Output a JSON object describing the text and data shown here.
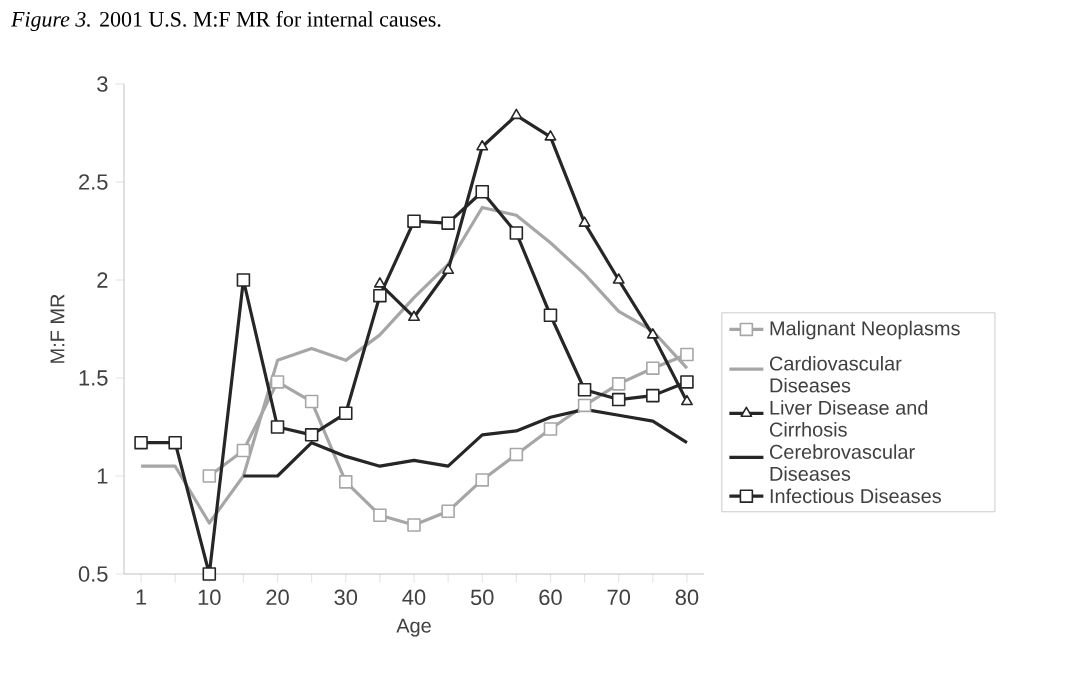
{
  "chart_data": {
    "type": "line",
    "title": "*Figure 3.*    2001 U.S. M:F MR for internal causes.",
    "xlabel": "Age",
    "ylabel": "M:F MR",
    "categories": [
      "1",
      null,
      "10",
      null,
      "20",
      null,
      "30",
      null,
      "40",
      null,
      "50",
      null,
      "60",
      null,
      "70",
      null,
      "80"
    ],
    "ylim": [
      0.5,
      3
    ],
    "yticks": [
      0.5,
      1,
      1.5,
      2,
      2.5,
      3
    ],
    "legend": "right",
    "grid": false,
    "series": [
      {
        "name": "Malignant Neoplasms",
        "color": "#a6a6a6",
        "marker": "square",
        "values": [
          null,
          null,
          1.0,
          1.13,
          1.48,
          1.38,
          0.97,
          0.8,
          0.75,
          0.82,
          0.98,
          1.11,
          1.24,
          1.36,
          1.47,
          1.55,
          1.62
        ]
      },
      {
        "name": "Cardiovascular Diseases",
        "color": "#a6a6a6",
        "marker": "none",
        "values": [
          1.05,
          1.05,
          0.76,
          1.0,
          1.59,
          1.65,
          1.59,
          1.72,
          1.91,
          2.08,
          2.37,
          2.33,
          2.19,
          2.03,
          1.84,
          1.74,
          1.55
        ]
      },
      {
        "name": "Liver Disease and Cirrhosis",
        "color": "#262626",
        "marker": "triangle",
        "values": [
          null,
          null,
          null,
          null,
          null,
          null,
          null,
          1.98,
          1.81,
          2.05,
          2.68,
          2.84,
          2.73,
          2.29,
          2.0,
          1.72,
          1.38
        ]
      },
      {
        "name": "Cerebrovascular Diseases",
        "color": "#262626",
        "marker": "none",
        "values": [
          null,
          null,
          null,
          1.0,
          1.0,
          1.17,
          1.1,
          1.05,
          1.08,
          1.05,
          1.21,
          1.23,
          1.3,
          1.34,
          1.31,
          1.28,
          1.17
        ]
      },
      {
        "name": "Infectious Diseases",
        "color": "#262626",
        "marker": "square",
        "values": [
          1.17,
          1.17,
          0.5,
          2.0,
          1.25,
          1.21,
          1.32,
          1.92,
          2.3,
          2.29,
          2.45,
          2.24,
          1.82,
          1.44,
          1.39,
          1.41,
          1.48
        ]
      }
    ]
  }
}
